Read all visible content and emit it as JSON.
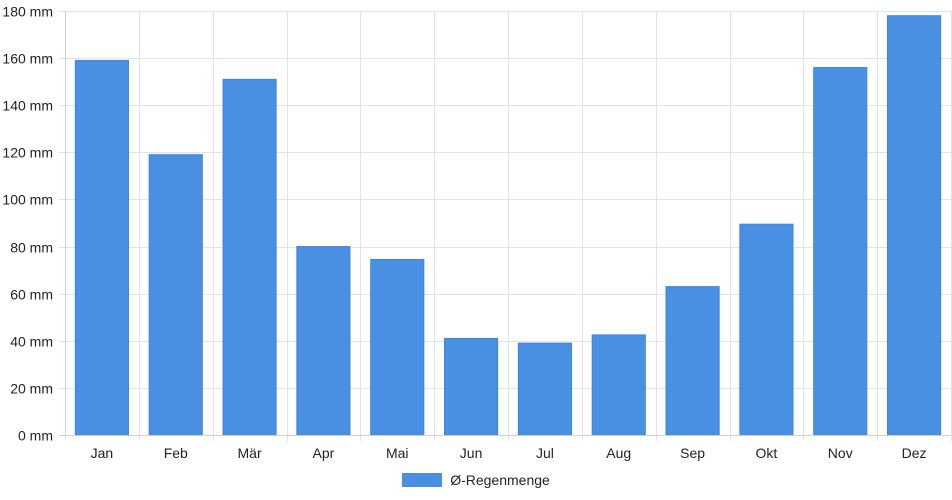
{
  "chart_data": {
    "type": "bar",
    "categories": [
      "Jan",
      "Feb",
      "Mär",
      "Apr",
      "Mai",
      "Jun",
      "Jul",
      "Aug",
      "Sep",
      "Okt",
      "Nov",
      "Dez"
    ],
    "series": [
      {
        "name": "Ø-Regenmenge",
        "values": [
          159,
          119,
          151,
          80,
          74.5,
          41,
          39,
          42.5,
          63,
          89.5,
          156,
          178
        ],
        "color": "#4a90e2"
      }
    ],
    "ylim": [
      0,
      180
    ],
    "y_ticks": [
      "0 mm",
      "20 mm",
      "40 mm",
      "60 mm",
      "80 mm",
      "100 mm",
      "120 mm",
      "140 mm",
      "160 mm",
      "180 mm"
    ],
    "y_tick_values": [
      0,
      20,
      40,
      60,
      80,
      100,
      120,
      140,
      160,
      180
    ],
    "y_unit": "mm",
    "grid": true,
    "legend_position": "bottom-center",
    "title": "",
    "xlabel": "",
    "ylabel": ""
  }
}
